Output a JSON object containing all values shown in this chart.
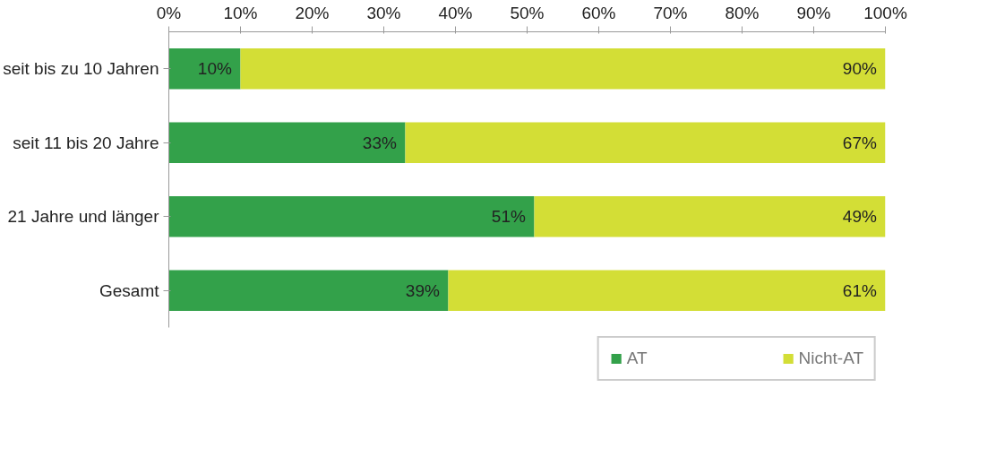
{
  "chart_data": {
    "type": "bar",
    "orientation": "horizontal",
    "stacked": true,
    "categories": [
      "seit bis zu 10 Jahren",
      "seit 11 bis 20 Jahre",
      "21 Jahre und länger",
      "Gesamt"
    ],
    "series": [
      {
        "name": "AT",
        "color": "#33a14a",
        "values": [
          10,
          33,
          51,
          39
        ],
        "value_labels": [
          "10%",
          "33%",
          "51%",
          "39%"
        ]
      },
      {
        "name": "Nicht-AT",
        "color": "#d3de36",
        "values": [
          90,
          67,
          49,
          61
        ],
        "value_labels": [
          "90%",
          "67%",
          "49%",
          "61%"
        ]
      }
    ],
    "xlim": [
      0,
      100
    ],
    "xticks": [
      {
        "value": 0,
        "label": "0%"
      },
      {
        "value": 10,
        "label": "10%"
      },
      {
        "value": 20,
        "label": "20%"
      },
      {
        "value": 30,
        "label": "30%"
      },
      {
        "value": 40,
        "label": "40%"
      },
      {
        "value": 50,
        "label": "50%"
      },
      {
        "value": 60,
        "label": "60%"
      },
      {
        "value": 70,
        "label": "70%"
      },
      {
        "value": 80,
        "label": "80%"
      },
      {
        "value": 90,
        "label": "90%"
      },
      {
        "value": 100,
        "label": "100%"
      }
    ],
    "grid": false,
    "legend": "bottom"
  }
}
